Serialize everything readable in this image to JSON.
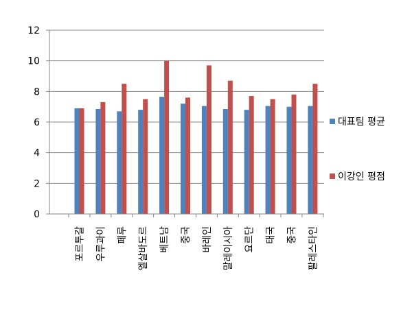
{
  "chart_data": {
    "type": "bar",
    "categories": [
      "포르투갈",
      "우루과이",
      "페루",
      "엘살바도르",
      "베트남",
      "중국",
      "바레인",
      "말레이시아",
      "요르단",
      "태국",
      "중국",
      "팔레스타인"
    ],
    "series": [
      {
        "name": "대표팀 평균",
        "color": "#4F81BD",
        "values": [
          6.9,
          6.85,
          6.7,
          6.8,
          7.65,
          7.2,
          7.05,
          6.85,
          6.8,
          7.05,
          7.0,
          7.05
        ]
      },
      {
        "name": "이강인 평점",
        "color": "#C0504D",
        "values": [
          6.9,
          7.3,
          8.5,
          7.5,
          10.0,
          7.6,
          9.7,
          8.7,
          7.7,
          7.5,
          7.8,
          8.5
        ]
      }
    ],
    "ylim": [
      0,
      12
    ],
    "yticks": [
      0,
      2,
      4,
      6,
      8,
      10,
      12
    ],
    "grid": true,
    "legend_position": "right"
  }
}
